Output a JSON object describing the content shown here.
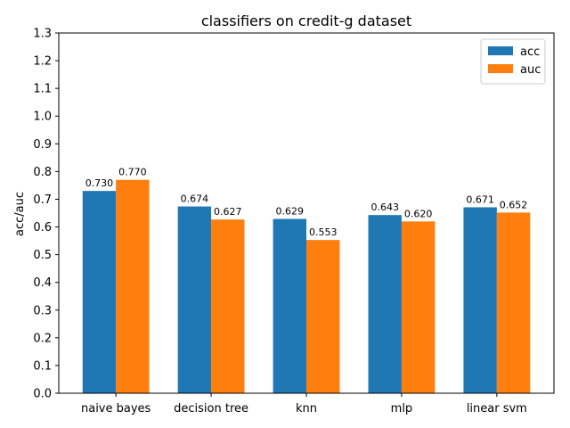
{
  "chart_data": {
    "type": "bar",
    "title": "classifiers on credit-g dataset",
    "xlabel": "",
    "ylabel": "acc/auc",
    "categories": [
      "naive bayes",
      "decision tree",
      "knn",
      "mlp",
      "linear svm"
    ],
    "series": [
      {
        "name": "acc",
        "values": [
          0.73,
          0.674,
          0.629,
          0.643,
          0.671
        ],
        "labels": [
          "0.730",
          "0.674",
          "0.629",
          "0.643",
          "0.671"
        ],
        "color": "#1f77b4"
      },
      {
        "name": "auc",
        "values": [
          0.77,
          0.627,
          0.553,
          0.62,
          0.652
        ],
        "labels": [
          "0.770",
          "0.627",
          "0.553",
          "0.620",
          "0.652"
        ],
        "color": "#ff7f0e"
      }
    ],
    "ylim": [
      0,
      1.3
    ],
    "yticks": [
      "0.0",
      "0.1",
      "0.2",
      "0.3",
      "0.4",
      "0.5",
      "0.6",
      "0.7",
      "0.8",
      "0.9",
      "1.0",
      "1.1",
      "1.2",
      "1.3"
    ],
    "grid": false,
    "legend_position": "top-right"
  }
}
